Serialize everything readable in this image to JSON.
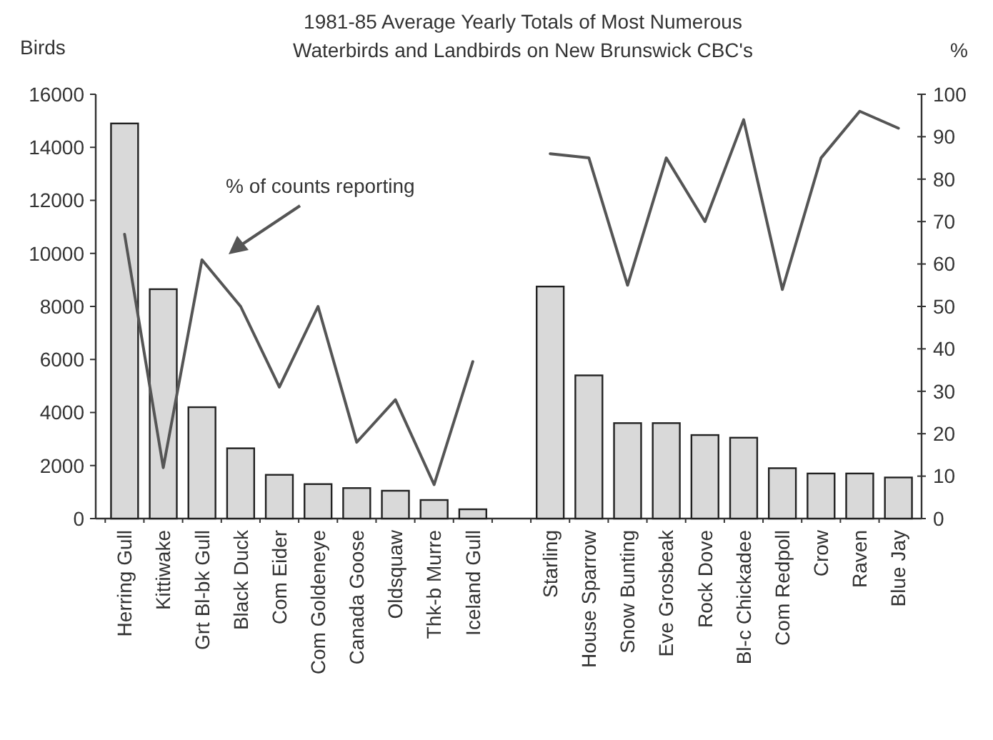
{
  "chart_data": {
    "type": "bar",
    "title": "1981-85 Average Yearly Totals of Most Numerous\nWaterbirds and Landbirds on New Brunswick CBC's",
    "ylabel": "Birds",
    "y2label": "%",
    "categories": [
      "Herring Gull",
      "Kittiwake",
      "Grt Bl-bk Gull",
      "Black Duck",
      "Com Eider",
      "Com Goldeneye",
      "Canada Goose",
      "Oldsquaw",
      "Thk-b Murre",
      "Iceland Gull",
      null,
      "Starling",
      "House Sparrow",
      "Snow Bunting",
      "Eve Grosbeak",
      "Rock Dove",
      "Bl-c Chickadee",
      "Com Redpoll",
      "Crow",
      "Raven",
      "Blue Jay"
    ],
    "series": [
      {
        "color": "#d9d9d9",
        "values": [
          14900,
          8650,
          4200,
          2650,
          1650,
          1300,
          1150,
          1050,
          700,
          350,
          null,
          8750,
          5400,
          3600,
          3600,
          3150,
          3050,
          1900,
          1700,
          1700,
          1550
        ]
      },
      {
        "type": "line",
        "axis": "y2",
        "color": "#555555",
        "values": [
          67,
          12,
          61,
          50,
          31,
          50,
          18,
          28,
          8,
          37,
          null,
          86,
          85,
          55,
          85,
          70,
          94,
          54,
          85,
          96,
          92
        ]
      }
    ],
    "ylim": [
      0,
      16000
    ],
    "yticks": [
      0,
      2000,
      4000,
      6000,
      8000,
      10000,
      12000,
      14000,
      16000
    ],
    "y2lim": [
      0,
      100
    ],
    "y2ticks": [
      0,
      10,
      20,
      30,
      40,
      50,
      60,
      70,
      80,
      90,
      100
    ],
    "annotations": [
      "% of counts reporting"
    ],
    "grid": false,
    "marker": "none",
    "line_style": "solid"
  }
}
